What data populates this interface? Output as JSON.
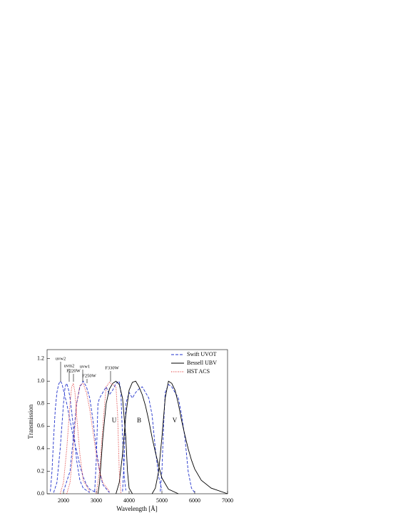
{
  "chart_data": {
    "type": "line",
    "xlabel": "Wavelength [Å]",
    "ylabel": "Transmission",
    "xlim": [
      1500,
      7000
    ],
    "ylim": [
      0,
      1.28
    ],
    "xticks": [
      2000,
      3000,
      4000,
      5000,
      6000,
      7000
    ],
    "yticks": [
      {
        "value": 0,
        "label": "0.0"
      },
      0.2,
      0.4,
      0.6,
      0.8,
      {
        "value": 1,
        "label": "1.0"
      },
      1.2
    ],
    "legend": "upper right",
    "annotations": [
      "uvw2",
      "uvm2",
      "F220W",
      "uvw1",
      "F250W",
      "F330W",
      "U",
      "B",
      "V"
    ],
    "series": [
      {
        "name": "Swift UVOT",
        "color": "#2233cc",
        "dash": "4,2",
        "x": [
          1600,
          1650,
          1700,
          1750,
          1800,
          1850,
          1900,
          1950,
          2000,
          2100,
          2200,
          2300,
          2400,
          2500,
          2600,
          2700,
          2800,
          3000,
          null,
          1700,
          1800,
          1900,
          2000,
          2050,
          2100,
          2150,
          2200,
          2300,
          2400,
          2500,
          2600,
          2800,
          null,
          2000,
          2200,
          2300,
          2400,
          2500,
          2600,
          2700,
          2800,
          2900,
          3000,
          3100,
          3200,
          3400,
          null,
          2950,
          3000,
          3050,
          3100,
          3200,
          3300,
          3400,
          3500,
          3600,
          3700,
          3750,
          3800,
          3850,
          3900,
          null,
          3800,
          3850,
          3900,
          4000,
          4100,
          4200,
          4300,
          4400,
          4500,
          4600,
          4700,
          4800,
          4900,
          5000,
          null,
          4950,
          5000,
          5050,
          5100,
          5200,
          5300,
          5400,
          5500,
          5600,
          5700,
          5800,
          5900,
          6000
        ],
        "values": [
          0.02,
          0.2,
          0.5,
          0.75,
          0.9,
          0.97,
          1.0,
          0.98,
          0.92,
          0.8,
          0.65,
          0.5,
          0.38,
          0.25,
          0.15,
          0.08,
          0.04,
          0.01,
          null,
          0.01,
          0.1,
          0.4,
          0.8,
          0.95,
          0.98,
          0.93,
          0.85,
          0.6,
          0.3,
          0.12,
          0.05,
          0.01,
          null,
          0.02,
          0.2,
          0.5,
          0.8,
          0.95,
          1.0,
          0.95,
          0.85,
          0.65,
          0.4,
          0.2,
          0.08,
          0.01,
          null,
          0.02,
          0.3,
          0.8,
          0.85,
          0.9,
          0.95,
          0.88,
          0.92,
          0.98,
          1.0,
          0.9,
          0.5,
          0.15,
          0.03,
          null,
          0.02,
          0.3,
          0.8,
          0.9,
          0.85,
          0.9,
          0.93,
          0.95,
          0.9,
          0.85,
          0.7,
          0.4,
          0.15,
          0.03,
          null,
          0.02,
          0.2,
          0.6,
          0.9,
          0.97,
          0.95,
          0.9,
          0.85,
          0.7,
          0.5,
          0.2,
          0.05,
          0.01
        ]
      },
      {
        "name": "Bessell UBV",
        "color": "#000000",
        "dash": "none",
        "x": [
          3050,
          3100,
          3200,
          3300,
          3400,
          3500,
          3600,
          3700,
          3800,
          3900,
          3950,
          4000,
          4100,
          null,
          3600,
          3700,
          3800,
          3900,
          4000,
          4100,
          4200,
          4300,
          4400,
          4500,
          4600,
          4700,
          4800,
          4900,
          5000,
          5200,
          5500,
          null,
          4700,
          4800,
          4900,
          5000,
          5100,
          5200,
          5300,
          5400,
          5500,
          5600,
          5700,
          5800,
          5900,
          6000,
          6200,
          6500,
          7000
        ],
        "values": [
          0,
          0.1,
          0.5,
          0.8,
          0.93,
          0.98,
          1.0,
          0.97,
          0.85,
          0.5,
          0.2,
          0.05,
          0,
          null,
          0,
          0.1,
          0.35,
          0.7,
          0.92,
          0.99,
          1.0,
          0.95,
          0.88,
          0.78,
          0.65,
          0.5,
          0.37,
          0.25,
          0.14,
          0.04,
          0,
          null,
          0,
          0.05,
          0.2,
          0.5,
          0.85,
          1.0,
          0.98,
          0.92,
          0.8,
          0.65,
          0.52,
          0.4,
          0.3,
          0.22,
          0.12,
          0.05,
          0
        ]
      },
      {
        "name": "HST ACS",
        "color": "#dd2222",
        "dash": "1,1.5",
        "x": [
          1900,
          2000,
          2100,
          2200,
          2250,
          2300,
          2350,
          2400,
          2500,
          2600,
          2800,
          null,
          2100,
          2200,
          2300,
          2400,
          2500,
          2600,
          2700,
          2800,
          2900,
          3000,
          3100,
          3200,
          3400,
          null,
          3000,
          3100,
          3200,
          3300,
          3400,
          3500,
          3600,
          3650,
          3700,
          3750
        ],
        "values": [
          0,
          0.1,
          0.4,
          0.8,
          0.95,
          0.98,
          0.9,
          0.7,
          0.35,
          0.12,
          0.02,
          null,
          0,
          0.1,
          0.4,
          0.8,
          0.96,
          0.98,
          0.9,
          0.75,
          0.55,
          0.35,
          0.2,
          0.1,
          0.02,
          null,
          0,
          0.2,
          0.6,
          0.95,
          0.99,
          0.97,
          0.95,
          0.7,
          0.2,
          0
        ]
      }
    ]
  }
}
